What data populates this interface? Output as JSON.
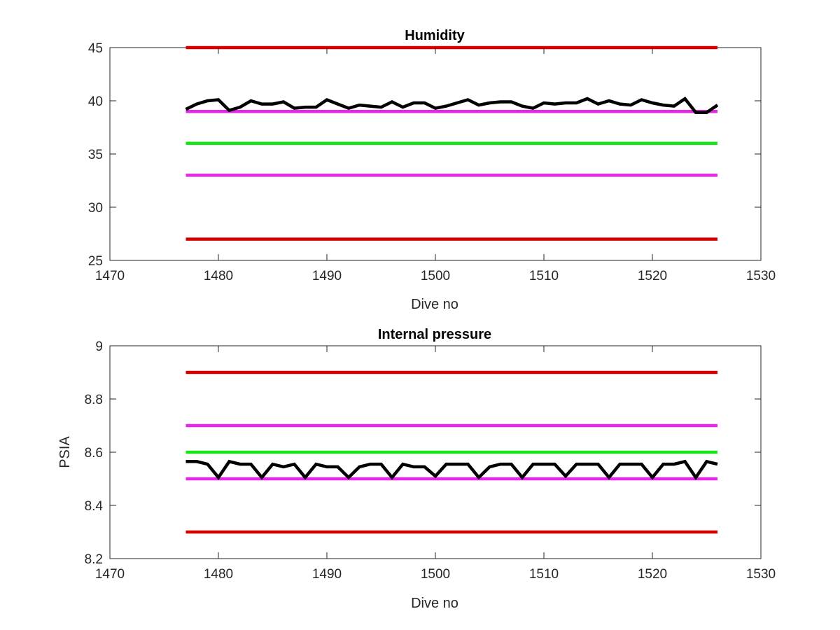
{
  "chart_data": [
    {
      "type": "line",
      "title": "Humidity",
      "xlabel": "Dive no",
      "ylabel": "",
      "xlim": [
        1470,
        1530
      ],
      "ylim": [
        25,
        45
      ],
      "xticks": [
        1470,
        1480,
        1490,
        1500,
        1510,
        1520,
        1530
      ],
      "yticks": [
        25,
        30,
        35,
        40,
        45
      ],
      "grid": false,
      "series": [
        {
          "color": "#d40000",
          "x": [
            1477,
            1526
          ],
          "y": [
            45,
            45
          ]
        },
        {
          "color": "#e628e6",
          "x": [
            1477,
            1526
          ],
          "y": [
            39,
            39
          ]
        },
        {
          "color": "#18e618",
          "x": [
            1477,
            1526
          ],
          "y": [
            36,
            36
          ]
        },
        {
          "color": "#e628e6",
          "x": [
            1477,
            1526
          ],
          "y": [
            33,
            33
          ]
        },
        {
          "color": "#d40000",
          "x": [
            1477,
            1526
          ],
          "y": [
            27,
            27
          ]
        },
        {
          "color": "#000000",
          "x": [
            1477,
            1478,
            1479,
            1480,
            1481,
            1482,
            1483,
            1484,
            1485,
            1486,
            1487,
            1488,
            1489,
            1490,
            1491,
            1492,
            1493,
            1494,
            1495,
            1496,
            1497,
            1498,
            1499,
            1500,
            1501,
            1502,
            1503,
            1504,
            1505,
            1506,
            1507,
            1508,
            1509,
            1510,
            1511,
            1512,
            1513,
            1514,
            1515,
            1516,
            1517,
            1518,
            1519,
            1520,
            1521,
            1522,
            1523,
            1524,
            1525,
            1526
          ],
          "y": [
            39.2,
            39.7,
            40.0,
            40.1,
            39.1,
            39.4,
            40.0,
            39.7,
            39.7,
            39.9,
            39.3,
            39.4,
            39.4,
            40.1,
            39.7,
            39.3,
            39.6,
            39.5,
            39.4,
            39.9,
            39.4,
            39.8,
            39.8,
            39.3,
            39.5,
            39.8,
            40.1,
            39.6,
            39.8,
            39.9,
            39.9,
            39.5,
            39.3,
            39.8,
            39.7,
            39.8,
            39.8,
            40.2,
            39.7,
            40.0,
            39.7,
            39.6,
            40.1,
            39.8,
            39.6,
            39.5,
            40.2,
            38.9,
            38.9,
            39.6
          ]
        }
      ]
    },
    {
      "type": "line",
      "title": "Internal pressure",
      "xlabel": "Dive no",
      "ylabel": "PSIA",
      "xlim": [
        1470,
        1530
      ],
      "ylim": [
        8.2,
        9.0
      ],
      "xticks": [
        1470,
        1480,
        1490,
        1500,
        1510,
        1520,
        1530
      ],
      "yticks": [
        8.2,
        8.4,
        8.6,
        8.8,
        9
      ],
      "ytick_labels": [
        "8.2",
        "8.4",
        "8.6",
        "8.8",
        "9"
      ],
      "grid": false,
      "series": [
        {
          "color": "#d40000",
          "x": [
            1477,
            1526
          ],
          "y": [
            8.9,
            8.9
          ]
        },
        {
          "color": "#e628e6",
          "x": [
            1477,
            1526
          ],
          "y": [
            8.7,
            8.7
          ]
        },
        {
          "color": "#18e618",
          "x": [
            1477,
            1526
          ],
          "y": [
            8.6,
            8.6
          ]
        },
        {
          "color": "#e628e6",
          "x": [
            1477,
            1526
          ],
          "y": [
            8.5,
            8.5
          ]
        },
        {
          "color": "#d40000",
          "x": [
            1477,
            1526
          ],
          "y": [
            8.3,
            8.3
          ]
        },
        {
          "color": "#000000",
          "x": [
            1477,
            1478,
            1479,
            1480,
            1481,
            1482,
            1483,
            1484,
            1485,
            1486,
            1487,
            1488,
            1489,
            1490,
            1491,
            1492,
            1493,
            1494,
            1495,
            1496,
            1497,
            1498,
            1499,
            1500,
            1501,
            1502,
            1503,
            1504,
            1505,
            1506,
            1507,
            1508,
            1509,
            1510,
            1511,
            1512,
            1513,
            1514,
            1515,
            1516,
            1517,
            1518,
            1519,
            1520,
            1521,
            1522,
            1523,
            1524,
            1525,
            1526
          ],
          "y": [
            8.565,
            8.565,
            8.555,
            8.505,
            8.565,
            8.555,
            8.555,
            8.505,
            8.555,
            8.545,
            8.555,
            8.505,
            8.555,
            8.545,
            8.545,
            8.505,
            8.545,
            8.555,
            8.555,
            8.505,
            8.555,
            8.545,
            8.545,
            8.51,
            8.555,
            8.555,
            8.555,
            8.505,
            8.545,
            8.555,
            8.555,
            8.505,
            8.555,
            8.555,
            8.555,
            8.51,
            8.555,
            8.555,
            8.555,
            8.505,
            8.555,
            8.555,
            8.555,
            8.505,
            8.555,
            8.555,
            8.565,
            8.505,
            8.565,
            8.555
          ]
        }
      ]
    }
  ]
}
